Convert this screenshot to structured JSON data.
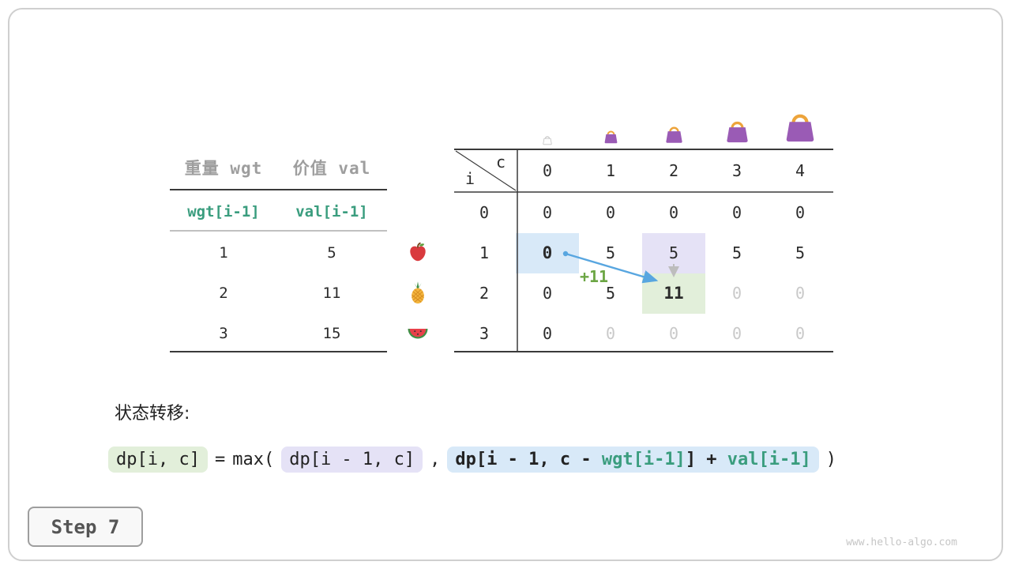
{
  "item_table": {
    "col_headers": [
      "重量 wgt",
      "价值 val"
    ],
    "formula_row": [
      "wgt[i-1]",
      "val[i-1]"
    ],
    "rows": [
      {
        "wgt": "1",
        "val": "5",
        "fruit": "apple"
      },
      {
        "wgt": "2",
        "val": "11",
        "fruit": "pineapple"
      },
      {
        "wgt": "3",
        "val": "15",
        "fruit": "watermelon"
      }
    ]
  },
  "dp_table": {
    "corner": {
      "row_var": "i",
      "col_var": "c"
    },
    "col_headers": [
      "0",
      "1",
      "2",
      "3",
      "4"
    ],
    "row_headers": [
      "0",
      "1",
      "2",
      "3"
    ],
    "cells": [
      [
        "0",
        "0",
        "0",
        "0",
        "0"
      ],
      [
        "0",
        "5",
        "5",
        "5",
        "5"
      ],
      [
        "0",
        "5",
        "11",
        "0",
        "0"
      ],
      [
        "0",
        "0",
        "0",
        "0",
        "0"
      ]
    ],
    "muted_cells": [
      [
        2,
        3
      ],
      [
        2,
        4
      ],
      [
        3,
        1
      ],
      [
        3,
        2
      ],
      [
        3,
        3
      ],
      [
        3,
        4
      ]
    ],
    "highlight_cells": [
      {
        "r": 1,
        "c": 0,
        "color": "blue",
        "bold": true
      },
      {
        "r": 1,
        "c": 2,
        "color": "purple",
        "bold": false
      },
      {
        "r": 2,
        "c": 2,
        "color": "green",
        "bold": true
      }
    ],
    "capacity_icons": [
      {
        "name": "bag-icon",
        "variant": "ghost"
      },
      {
        "name": "bag-icon",
        "variant": "purple"
      },
      {
        "name": "bag-icon",
        "variant": "purple"
      },
      {
        "name": "bag-icon",
        "variant": "purple"
      },
      {
        "name": "bag-icon",
        "variant": "purple"
      }
    ],
    "arrow_label": "+11"
  },
  "transition": {
    "label": "状态转移:",
    "lhs": "dp[i, c]",
    "equals": "=",
    "max_open": "max(",
    "arg1": "dp[i - 1, c]",
    "comma": ",",
    "arg2": {
      "p1": "dp[i - 1, c - ",
      "wgt": "wgt[i-1]",
      "p2": "] + ",
      "val": "val[i-1]"
    },
    "close": ")"
  },
  "step_badge": {
    "label": "Step 7"
  },
  "watermark": "www.hello-algo.com",
  "colors": {
    "teal_code": "#3a9d7e",
    "plus_label_green": "#6ca644",
    "highlight_blue": "#d8e9f8",
    "highlight_purple": "#e5e2f6",
    "highlight_green": "#e2efda",
    "arrow_blue": "#58a6e0",
    "muted_gray": "#c9c9c9",
    "bag_purple": "#9a5bb5",
    "bag_handle_orange": "#eda43b"
  }
}
